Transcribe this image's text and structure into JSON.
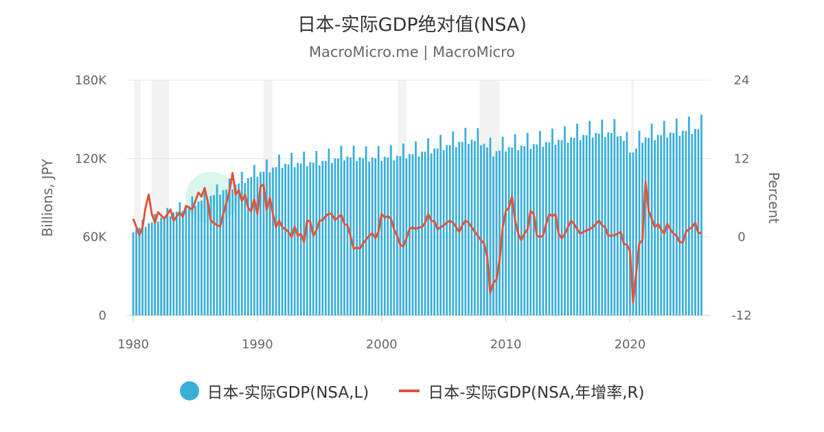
{
  "header": {
    "title": "日本-实际GDP绝对值(NSA)",
    "subtitle": "MacroMicro.me | MacroMicro"
  },
  "legend": {
    "items": [
      {
        "label": "日本-实际GDP(NSA,L)",
        "color": "#3aaed8",
        "symbol": "dot"
      },
      {
        "label": "日本-实际GDP(NSA,年增率,R)",
        "color": "#e0543b",
        "symbol": "line"
      }
    ]
  },
  "chart_data": {
    "type": "bar+line",
    "title": "日本-实际GDP绝对值(NSA)",
    "subtitle": "MacroMicro.me | MacroMicro",
    "xaxis": {
      "ticks": [
        "1980",
        "1990",
        "2000",
        "2010",
        "2020"
      ],
      "range": [
        1980,
        2026
      ]
    },
    "yaxis_left": {
      "label": "Billions, JPY",
      "ticks": [
        "0",
        "60K",
        "120K",
        "180K"
      ],
      "range": [
        0,
        180000
      ]
    },
    "yaxis_right": {
      "label": "Percent",
      "ticks": [
        "-12",
        "0",
        "12",
        "24"
      ],
      "range": [
        -12,
        24
      ]
    },
    "grid": true,
    "legend_position": "bottom",
    "recessions": [
      [
        1980.1,
        1980.6
      ],
      [
        1981.5,
        1982.9
      ],
      [
        1990.5,
        1991.2
      ],
      [
        2001.3,
        2002.0
      ],
      [
        2007.9,
        2009.5
      ],
      [
        2020.1,
        2020.3
      ]
    ],
    "series": [
      {
        "name": "日本-实际GDP(NSA,L)",
        "type": "bar",
        "axis": "left",
        "color": "#3aaed8",
        "start": 1980.0,
        "step": 0.25,
        "anchors": [
          [
            1980,
            66000
          ],
          [
            1985,
            87000
          ],
          [
            1988,
            100000
          ],
          [
            1990,
            110000
          ],
          [
            1992,
            117000
          ],
          [
            1995,
            119000
          ],
          [
            1997,
            123000
          ],
          [
            1999,
            122000
          ],
          [
            2001,
            123000
          ],
          [
            2003,
            126000
          ],
          [
            2005,
            131000
          ],
          [
            2007,
            136000
          ],
          [
            2008,
            135000
          ],
          [
            2009,
            126000
          ],
          [
            2010,
            130000
          ],
          [
            2012,
            132000
          ],
          [
            2015,
            137000
          ],
          [
            2017,
            141000
          ],
          [
            2019,
            142000
          ],
          [
            2020.25,
            126000
          ],
          [
            2021,
            137000
          ],
          [
            2023,
            141000
          ],
          [
            2025.75,
            145000
          ]
        ],
        "seasonal": [
          0.965,
          0.99,
          0.985,
          1.06
        ]
      },
      {
        "name": "日本-实际GDP(NSA,年增率,R)",
        "type": "line",
        "axis": "right",
        "color": "#e0543b",
        "points": [
          [
            1980.0,
            2.8
          ],
          [
            1980.5,
            0.3
          ],
          [
            1980.75,
            1.5
          ],
          [
            1981.0,
            4.6
          ],
          [
            1981.25,
            6.5
          ],
          [
            1981.5,
            3.5
          ],
          [
            1981.75,
            2.2
          ],
          [
            1982.0,
            3.8
          ],
          [
            1982.5,
            2.8
          ],
          [
            1983.0,
            4.2
          ],
          [
            1983.25,
            2.5
          ],
          [
            1983.75,
            3.8
          ],
          [
            1984.0,
            3.1
          ],
          [
            1984.25,
            4.8
          ],
          [
            1984.75,
            4.2
          ],
          [
            1985.0,
            5.5
          ],
          [
            1985.25,
            6.8
          ],
          [
            1985.5,
            6.2
          ],
          [
            1985.75,
            7.5
          ],
          [
            1986.0,
            5.5
          ],
          [
            1986.25,
            2.5
          ],
          [
            1986.75,
            1.8
          ],
          [
            1987.0,
            1.6
          ],
          [
            1987.25,
            3.5
          ],
          [
            1987.5,
            5.2
          ],
          [
            1987.75,
            7.0
          ],
          [
            1988.0,
            9.8
          ],
          [
            1988.25,
            6.5
          ],
          [
            1988.5,
            7.2
          ],
          [
            1988.75,
            5.5
          ],
          [
            1989.0,
            6.5
          ],
          [
            1989.25,
            4.5
          ],
          [
            1989.5,
            3.9
          ],
          [
            1989.75,
            5.8
          ],
          [
            1990.0,
            3.5
          ],
          [
            1990.25,
            7.8
          ],
          [
            1990.5,
            8.0
          ],
          [
            1990.75,
            4.2
          ],
          [
            1991.0,
            6.0
          ],
          [
            1991.25,
            3.5
          ],
          [
            1991.5,
            1.5
          ],
          [
            1991.75,
            2.5
          ],
          [
            1992.0,
            1.5
          ],
          [
            1992.25,
            1.2
          ],
          [
            1992.5,
            0.8
          ],
          [
            1992.75,
            0.0
          ],
          [
            1993.0,
            1.6
          ],
          [
            1993.25,
            0.2
          ],
          [
            1993.5,
            0.5
          ],
          [
            1993.75,
            -0.8
          ],
          [
            1994.0,
            2.5
          ],
          [
            1994.25,
            2.4
          ],
          [
            1994.5,
            0.2
          ],
          [
            1994.75,
            1.0
          ],
          [
            1995.0,
            2.5
          ],
          [
            1995.25,
            2.6
          ],
          [
            1995.5,
            3.2
          ],
          [
            1995.75,
            3.6
          ],
          [
            1996.0,
            3.5
          ],
          [
            1996.25,
            2.6
          ],
          [
            1996.5,
            3.0
          ],
          [
            1996.75,
            3.4
          ],
          [
            1997.0,
            2.0
          ],
          [
            1997.25,
            1.8
          ],
          [
            1997.5,
            0.2
          ],
          [
            1997.75,
            -1.8
          ],
          [
            1998.0,
            -1.6
          ],
          [
            1998.25,
            -1.8
          ],
          [
            1998.5,
            -1.0
          ],
          [
            1998.75,
            -0.4
          ],
          [
            1999.0,
            0.2
          ],
          [
            1999.25,
            0.6
          ],
          [
            1999.5,
            -0.2
          ],
          [
            1999.75,
            0.8
          ],
          [
            2000.0,
            3.5
          ],
          [
            2000.25,
            3.0
          ],
          [
            2000.5,
            3.2
          ],
          [
            2000.75,
            2.8
          ],
          [
            2001.0,
            1.2
          ],
          [
            2001.25,
            0.2
          ],
          [
            2001.5,
            -1.2
          ],
          [
            2001.75,
            -1.4
          ],
          [
            2002.0,
            -0.2
          ],
          [
            2002.25,
            1.2
          ],
          [
            2002.5,
            1.5
          ],
          [
            2002.75,
            1.2
          ],
          [
            2003.0,
            1.5
          ],
          [
            2003.25,
            1.5
          ],
          [
            2003.5,
            2.2
          ],
          [
            2003.75,
            3.5
          ],
          [
            2004.0,
            2.5
          ],
          [
            2004.25,
            2.4
          ],
          [
            2004.5,
            1.2
          ],
          [
            2004.75,
            1.5
          ],
          [
            2005.0,
            1.8
          ],
          [
            2005.25,
            2.2
          ],
          [
            2005.5,
            2.5
          ],
          [
            2005.75,
            2.2
          ],
          [
            2006.0,
            1.5
          ],
          [
            2006.25,
            0.8
          ],
          [
            2006.5,
            1.8
          ],
          [
            2006.75,
            2.5
          ],
          [
            2007.0,
            2.2
          ],
          [
            2007.25,
            1.5
          ],
          [
            2007.5,
            0.8
          ],
          [
            2007.75,
            0.2
          ],
          [
            2008.0,
            -0.5
          ],
          [
            2008.25,
            -1.0
          ],
          [
            2008.5,
            -3.0
          ],
          [
            2008.75,
            -8.5
          ],
          [
            2009.0,
            -7.0
          ],
          [
            2009.25,
            -6.5
          ],
          [
            2009.5,
            -3.5
          ],
          [
            2009.75,
            1.5
          ],
          [
            2010.0,
            4.0
          ],
          [
            2010.25,
            4.5
          ],
          [
            2010.5,
            6.2
          ],
          [
            2010.75,
            2.5
          ],
          [
            2011.0,
            0.5
          ],
          [
            2011.25,
            -0.5
          ],
          [
            2011.5,
            0.5
          ],
          [
            2011.75,
            1.2
          ],
          [
            2012.0,
            4.0
          ],
          [
            2012.25,
            3.5
          ],
          [
            2012.5,
            0.2
          ],
          [
            2012.75,
            0.0
          ],
          [
            2013.0,
            0.2
          ],
          [
            2013.25,
            2.0
          ],
          [
            2013.5,
            3.5
          ],
          [
            2013.75,
            3.2
          ],
          [
            2014.0,
            3.5
          ],
          [
            2014.25,
            0.5
          ],
          [
            2014.5,
            -0.2
          ],
          [
            2014.75,
            0.5
          ],
          [
            2015.0,
            1.5
          ],
          [
            2015.25,
            2.5
          ],
          [
            2015.5,
            2.0
          ],
          [
            2015.75,
            1.2
          ],
          [
            2016.0,
            0.5
          ],
          [
            2016.25,
            0.8
          ],
          [
            2016.5,
            1.0
          ],
          [
            2016.75,
            1.2
          ],
          [
            2017.0,
            1.5
          ],
          [
            2017.25,
            2.0
          ],
          [
            2017.5,
            2.5
          ],
          [
            2017.75,
            1.8
          ],
          [
            2018.0,
            1.5
          ],
          [
            2018.25,
            0.2
          ],
          [
            2018.5,
            0.2
          ],
          [
            2018.75,
            0.3
          ],
          [
            2019.0,
            0.5
          ],
          [
            2019.25,
            0.8
          ],
          [
            2019.5,
            -1.0
          ],
          [
            2019.75,
            -1.2
          ],
          [
            2020.0,
            -2.2
          ],
          [
            2020.25,
            -10.0
          ],
          [
            2020.5,
            -5.5
          ],
          [
            2020.75,
            -1.0
          ],
          [
            2021.0,
            -0.5
          ],
          [
            2021.25,
            8.5
          ],
          [
            2021.5,
            4.0
          ],
          [
            2021.75,
            2.8
          ],
          [
            2022.0,
            1.5
          ],
          [
            2022.25,
            2.0
          ],
          [
            2022.5,
            1.2
          ],
          [
            2022.75,
            0.5
          ],
          [
            2023.0,
            2.0
          ],
          [
            2023.25,
            1.2
          ],
          [
            2023.5,
            0.5
          ],
          [
            2023.75,
            0.2
          ],
          [
            2024.0,
            -0.8
          ],
          [
            2024.25,
            -0.8
          ],
          [
            2024.5,
            0.8
          ],
          [
            2024.75,
            1.2
          ],
          [
            2025.0,
            1.5
          ],
          [
            2025.25,
            2.2
          ],
          [
            2025.5,
            0.6
          ],
          [
            2025.75,
            0.6
          ]
        ]
      }
    ]
  }
}
